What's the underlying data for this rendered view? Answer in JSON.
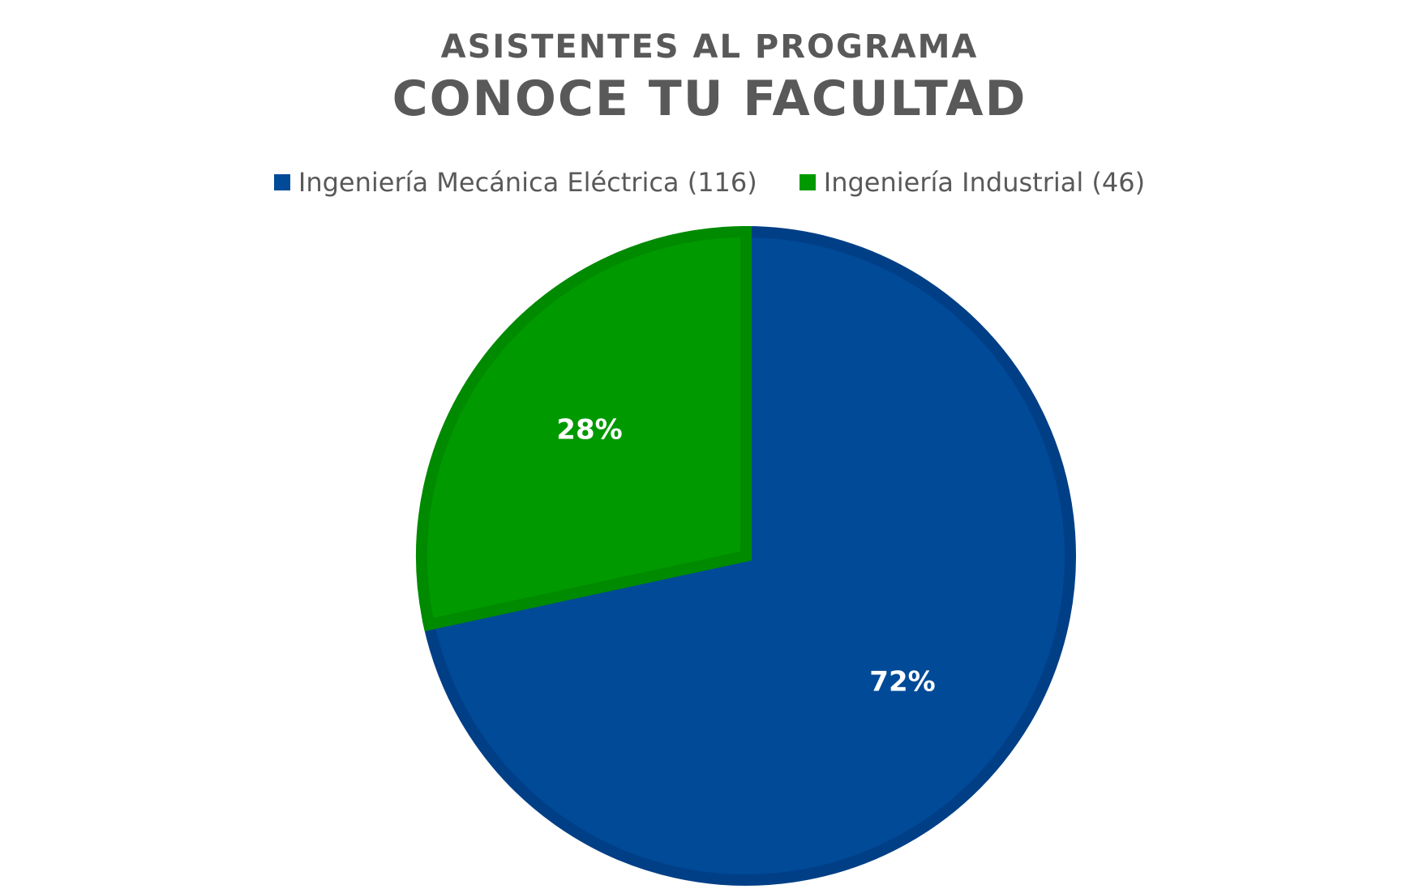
{
  "chart_data": {
    "type": "pie",
    "title_line1": "ASISTENTES AL PROGRAMA",
    "title_line2": "CONOCE TU FACULTAD",
    "legend_placement": "top",
    "slices": [
      {
        "legend": "Ingeniería Mecánica Eléctrica (116)",
        "value": 116,
        "percent_label": "72%",
        "color": "#004A98",
        "border": "#003F86"
      },
      {
        "legend": "Ingeniería Industrial (46)",
        "value": 46,
        "percent_label": "28%",
        "color": "#009A00",
        "border": "#008A00"
      }
    ]
  }
}
